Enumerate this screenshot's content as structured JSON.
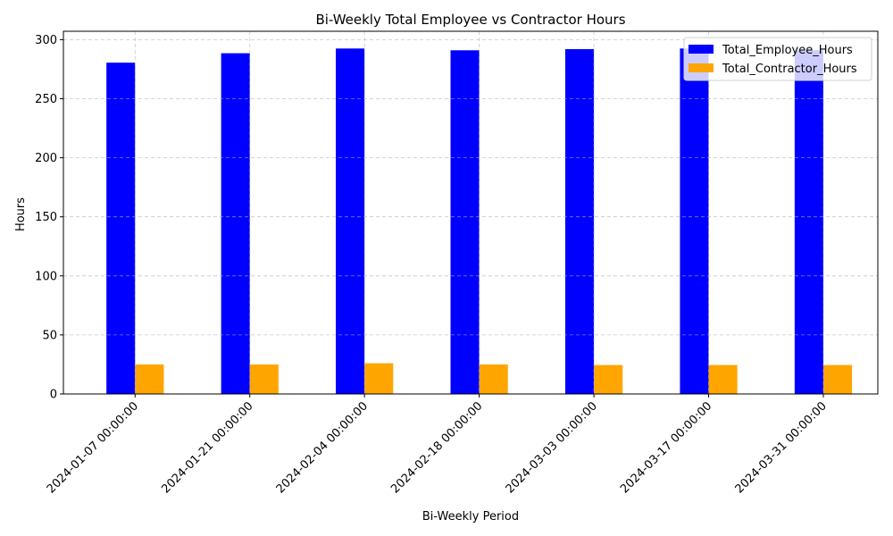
{
  "chart_data": {
    "type": "bar",
    "title": "Bi-Weekly Total Employee vs Contractor Hours",
    "xlabel": "Bi-Weekly Period",
    "ylabel": "Hours",
    "categories": [
      "2024-01-07 00:00:00",
      "2024-01-21 00:00:00",
      "2024-02-04 00:00:00",
      "2024-02-18 00:00:00",
      "2024-03-03 00:00:00",
      "2024-03-17 00:00:00",
      "2024-03-31 00:00:00"
    ],
    "series": [
      {
        "name": "Total_Employee_Hours",
        "color": "#0000ff",
        "values": [
          280.5,
          288.5,
          292.5,
          291.0,
          292.0,
          292.5,
          291.0
        ]
      },
      {
        "name": "Total_Contractor_Hours",
        "color": "#ffa500",
        "values": [
          25.0,
          25.0,
          26.0,
          25.0,
          24.5,
          24.5,
          24.5
        ]
      }
    ],
    "ylim": [
      0,
      307.1
    ],
    "yticks": [
      0,
      50,
      100,
      150,
      200,
      250,
      300
    ],
    "grid": true,
    "legend_position": "top-right"
  }
}
